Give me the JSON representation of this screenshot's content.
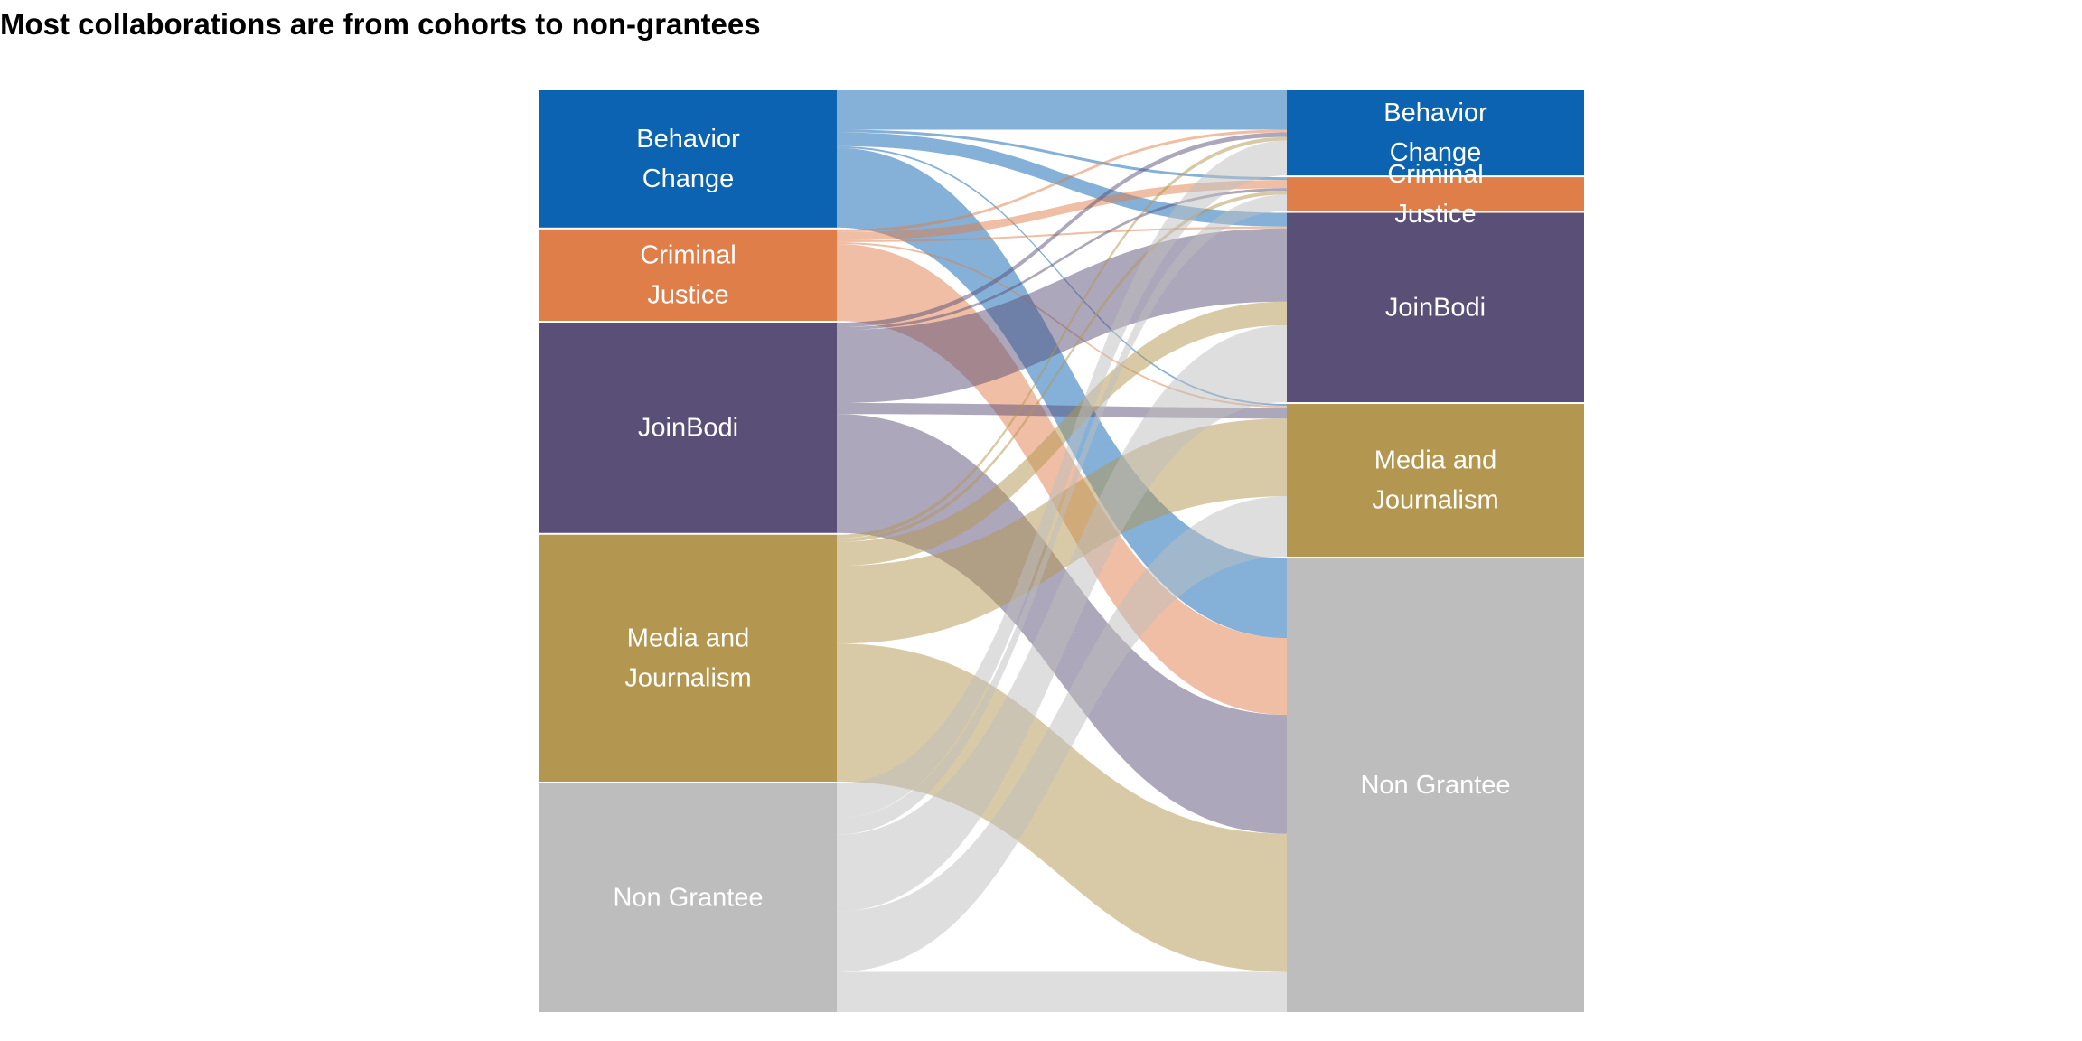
{
  "chart_data": {
    "type": "sankey",
    "title": "Most collaborations are from cohorts to non-grantees",
    "unit": "relative flow share (estimated from node heights)",
    "colors": {
      "Behavior Change": "#0b63b1",
      "Criminal Justice": "#e07e49",
      "JoinBodi": "#5a5077",
      "Media and Journalism": "#b3964f",
      "Non Grantee": "#bdbdbd"
    },
    "source_nodes": [
      {
        "name": "Behavior Change",
        "label_lines": [
          "Behavior",
          "Change"
        ],
        "value": 15
      },
      {
        "name": "Criminal Justice",
        "label_lines": [
          "Criminal",
          "Justice"
        ],
        "value": 10
      },
      {
        "name": "JoinBodi",
        "label_lines": [
          "JoinBodi"
        ],
        "value": 23
      },
      {
        "name": "Media and Journalism",
        "label_lines": [
          "Media and",
          "Journalism"
        ],
        "value": 27
      },
      {
        "name": "Non Grantee",
        "label_lines": [
          "Non Grantee"
        ],
        "value": 25
      }
    ],
    "target_nodes": [
      {
        "name": "Behavior Change",
        "label_lines": [
          "Behavior",
          "Change"
        ],
        "value": 9.3
      },
      {
        "name": "Criminal Justice",
        "label_lines": [
          "Criminal",
          "Justice"
        ],
        "value": 3.7
      },
      {
        "name": "JoinBodi",
        "label_lines": [
          "JoinBodi"
        ],
        "value": 20.7
      },
      {
        "name": "Media and Journalism",
        "label_lines": [
          "Media and",
          "Journalism"
        ],
        "value": 16.7
      },
      {
        "name": "Non Grantee",
        "label_lines": [
          "Non Grantee"
        ],
        "value": 49.6
      }
    ],
    "links": [
      {
        "source": "Behavior Change",
        "target": "Behavior Change",
        "value": 4.3
      },
      {
        "source": "Behavior Change",
        "target": "Criminal Justice",
        "value": 0.3
      },
      {
        "source": "Behavior Change",
        "target": "JoinBodi",
        "value": 1.5
      },
      {
        "source": "Behavior Change",
        "target": "Media and Journalism",
        "value": 0.2
      },
      {
        "source": "Behavior Change",
        "target": "Non Grantee",
        "value": 8.7
      },
      {
        "source": "Criminal Justice",
        "target": "Behavior Change",
        "value": 0.3
      },
      {
        "source": "Criminal Justice",
        "target": "Criminal Justice",
        "value": 0.9
      },
      {
        "source": "Criminal Justice",
        "target": "JoinBodi",
        "value": 0.2
      },
      {
        "source": "Criminal Justice",
        "target": "Media and Journalism",
        "value": 0.2
      },
      {
        "source": "Criminal Justice",
        "target": "Non Grantee",
        "value": 8.4
      },
      {
        "source": "JoinBodi",
        "target": "Behavior Change",
        "value": 0.5
      },
      {
        "source": "JoinBodi",
        "target": "Criminal Justice",
        "value": 0.3
      },
      {
        "source": "JoinBodi",
        "target": "JoinBodi",
        "value": 8.0
      },
      {
        "source": "JoinBodi",
        "target": "Media and Journalism",
        "value": 1.2
      },
      {
        "source": "JoinBodi",
        "target": "Non Grantee",
        "value": 13.0
      },
      {
        "source": "Media and Journalism",
        "target": "Behavior Change",
        "value": 0.4
      },
      {
        "source": "Media and Journalism",
        "target": "Criminal Justice",
        "value": 0.4
      },
      {
        "source": "Media and Journalism",
        "target": "JoinBodi",
        "value": 2.6
      },
      {
        "source": "Media and Journalism",
        "target": "Media and Journalism",
        "value": 8.5
      },
      {
        "source": "Media and Journalism",
        "target": "Non Grantee",
        "value": 15.1
      },
      {
        "source": "Non Grantee",
        "target": "Behavior Change",
        "value": 3.8
      },
      {
        "source": "Non Grantee",
        "target": "Criminal Justice",
        "value": 1.8
      },
      {
        "source": "Non Grantee",
        "target": "JoinBodi",
        "value": 8.4
      },
      {
        "source": "Non Grantee",
        "target": "Media and Journalism",
        "value": 6.6
      },
      {
        "source": "Non Grantee",
        "target": "Non Grantee",
        "value": 4.4
      }
    ]
  }
}
